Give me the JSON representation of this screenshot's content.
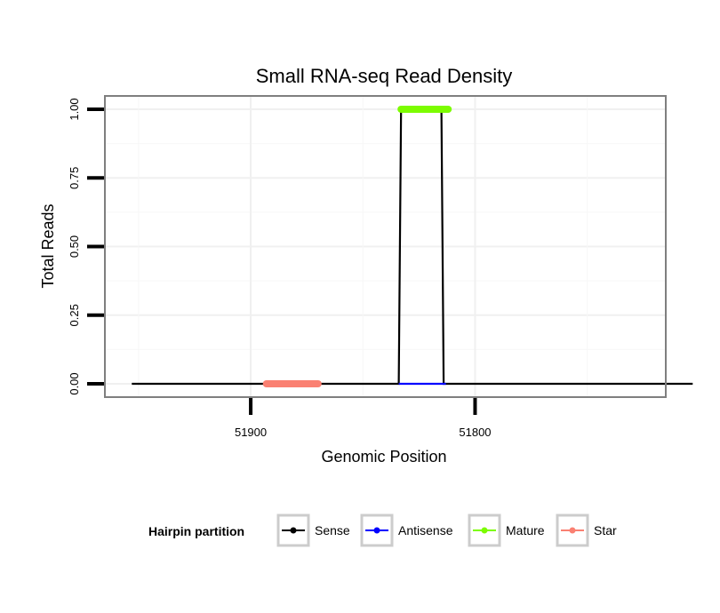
{
  "chart_data": {
    "type": "line",
    "title": "Small RNA-seq Read Density",
    "xlabel": "Genomic Position",
    "ylabel": "Total Reads",
    "x_reversed": true,
    "xlim": [
      51965,
      51715
    ],
    "ylim": [
      0,
      1
    ],
    "x_ticks": [
      51900,
      51800
    ],
    "x_tick_labels": [
      "51900",
      "51800"
    ],
    "y_ticks": [
      0,
      0.25,
      0.5,
      0.75,
      1
    ],
    "y_tick_labels": [
      "0.00",
      "0.25",
      "0.50",
      "0.75",
      "1.00"
    ],
    "grid": true,
    "legend": {
      "title": "Hairpin partition",
      "position": "bottom",
      "entries": [
        {
          "name": "Sense",
          "color": "#000000"
        },
        {
          "name": "Antisense",
          "color": "#0000ff"
        },
        {
          "name": "Mature",
          "color": "#7cfc00"
        },
        {
          "name": "Star",
          "color": "#fa8072"
        }
      ]
    },
    "series": [
      {
        "name": "Sense",
        "color": "#000000",
        "x": [
          51953,
          51834,
          51833,
          51815,
          51814,
          51703
        ],
        "y": [
          0,
          0,
          1,
          1,
          0,
          0
        ]
      },
      {
        "name": "Antisense",
        "color": "#0000ff",
        "x": [
          51834,
          51813
        ],
        "y": [
          0,
          0
        ]
      },
      {
        "name": "Mature",
        "color": "#7cfc00",
        "x": [
          51833,
          51812
        ],
        "y": [
          1,
          1
        ]
      },
      {
        "name": "Star",
        "color": "#fa8072",
        "x": [
          51893,
          51870
        ],
        "y": [
          0,
          0
        ]
      }
    ]
  }
}
